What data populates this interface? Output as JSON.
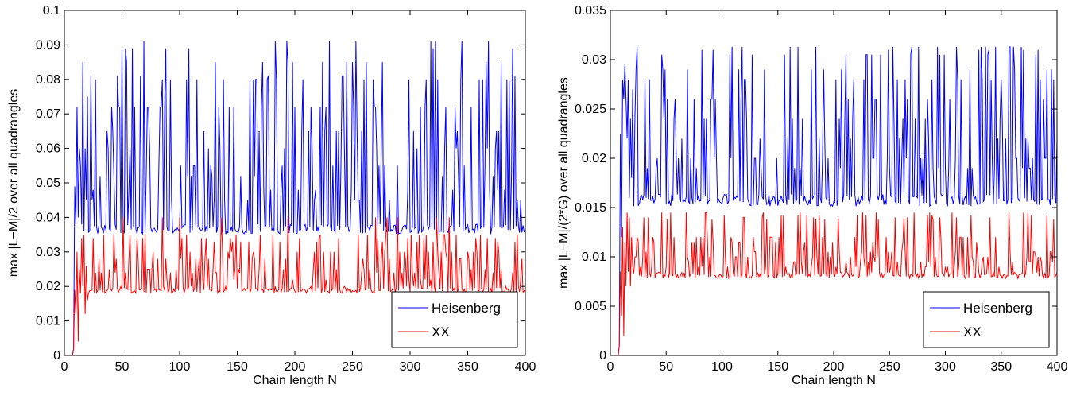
{
  "chart_data": [
    {
      "type": "line",
      "xlabel": "Chain length N",
      "ylabel": "max |L−M|/2 over all quadrangles",
      "xlim": [
        0,
        400
      ],
      "ylim": [
        0,
        0.1
      ],
      "xticks": [
        0,
        50,
        100,
        150,
        200,
        250,
        300,
        350,
        400
      ],
      "xtick_labels": [
        "0",
        "50",
        "100",
        "150",
        "200",
        "250",
        "300",
        "350",
        "400"
      ],
      "yticks": [
        0,
        0.01,
        0.02,
        0.03,
        0.04,
        0.05,
        0.06,
        0.07,
        0.08,
        0.09,
        0.1
      ],
      "ytick_labels": [
        "0",
        "0.01",
        "0.02",
        "0.03",
        "0.04",
        "0.05",
        "0.06",
        "0.07",
        "0.08",
        "0.09",
        "0.1"
      ],
      "grid": false,
      "legend_position": "bottom-right",
      "series": [
        {
          "name": "Heisenberg",
          "color": "#0000ff",
          "early_x": [
            1,
            2,
            3,
            4,
            5,
            6,
            7,
            8,
            9,
            10,
            11,
            12,
            13,
            14,
            15,
            16,
            17,
            18,
            19,
            20
          ],
          "early_y": [
            0,
            0,
            0,
            0,
            0,
            0,
            0,
            0.002,
            0.049,
            0.038,
            0.072,
            0.04,
            0.06,
            0.055,
            0.038,
            0.085,
            0.036,
            0.06,
            0.045,
            0.075
          ],
          "x_start": 21,
          "x_end": 400,
          "period": 23,
          "baseline": 0.036,
          "spike_values": [
            0.091,
            0.081,
            0.08,
            0.089,
            0.085,
            0.08
          ],
          "mid_values": [
            0.052,
            0.045,
            0.06,
            0.048,
            0.065,
            0.055,
            0.072
          ]
        },
        {
          "name": "XX",
          "color": "#ff0000",
          "early_x": [
            1,
            2,
            3,
            4,
            5,
            6,
            7,
            8,
            9,
            10,
            11,
            12,
            13,
            14,
            15,
            16,
            17,
            18,
            19,
            20
          ],
          "early_y": [
            0,
            0,
            0,
            0,
            0,
            0,
            0,
            0.002,
            0.019,
            0.012,
            0.03,
            0.004,
            0.025,
            0.018,
            0.034,
            0.02,
            0.035,
            0.012,
            0.026,
            0.016
          ],
          "x_start": 21,
          "x_end": 400,
          "period": 17,
          "baseline": 0.0185,
          "spike_values": [
            0.035,
            0.034,
            0.04,
            0.033,
            0.035
          ],
          "mid_values": [
            0.025,
            0.022,
            0.028,
            0.02,
            0.03,
            0.024
          ]
        }
      ]
    },
    {
      "type": "line",
      "xlabel": "Chain length N",
      "ylabel": "max |L−M|/(2*G) over all quadrangles",
      "xlim": [
        0,
        400
      ],
      "ylim": [
        0,
        0.035
      ],
      "xticks": [
        0,
        50,
        100,
        150,
        200,
        250,
        300,
        350,
        400
      ],
      "xtick_labels": [
        "0",
        "50",
        "100",
        "150",
        "200",
        "250",
        "300",
        "350",
        "400"
      ],
      "yticks": [
        0,
        0.005,
        0.01,
        0.015,
        0.02,
        0.025,
        0.03,
        0.035
      ],
      "ytick_labels": [
        "0",
        "0.005",
        "0.01",
        "0.015",
        "0.02",
        "0.025",
        "0.03",
        "0.035"
      ],
      "grid": false,
      "legend_position": "bottom-right",
      "series": [
        {
          "name": "Heisenberg",
          "color": "#0000ff",
          "early_x": [
            1,
            2,
            3,
            4,
            5,
            6,
            7,
            8,
            9,
            10,
            11,
            12,
            13,
            14,
            15,
            16,
            17,
            18,
            19,
            20
          ],
          "early_y": [
            0,
            0,
            0,
            0,
            0,
            0,
            0,
            0.001,
            0.0225,
            0.012,
            0.028,
            0.026,
            0.0295,
            0.026,
            0.022,
            0.028,
            0.016,
            0.024,
            0.018,
            0.027
          ],
          "x_start": 21,
          "x_end": 400,
          "period": 23,
          "baseline": 0.0155,
          "spike_values": [
            0.0313,
            0.031,
            0.0305,
            0.0313,
            0.029
          ],
          "mid_values": [
            0.022,
            0.019,
            0.026,
            0.02,
            0.028,
            0.024
          ]
        },
        {
          "name": "XX",
          "color": "#ff0000",
          "early_x": [
            1,
            2,
            3,
            4,
            5,
            6,
            7,
            8,
            9,
            10,
            11,
            12,
            13,
            14,
            15,
            16,
            17,
            18,
            19,
            20
          ],
          "early_y": [
            0,
            0,
            0,
            0,
            0,
            0,
            0,
            0.001,
            0.0085,
            0.004,
            0.013,
            0.002,
            0.0115,
            0.007,
            0.0145,
            0.0085,
            0.014,
            0.007,
            0.012,
            0.009
          ],
          "x_start": 21,
          "x_end": 400,
          "period": 17,
          "baseline": 0.008,
          "spike_values": [
            0.0145,
            0.014,
            0.0142,
            0.0138
          ],
          "mid_values": [
            0.01,
            0.009,
            0.012,
            0.0095,
            0.0115,
            0.0105
          ]
        }
      ]
    }
  ]
}
